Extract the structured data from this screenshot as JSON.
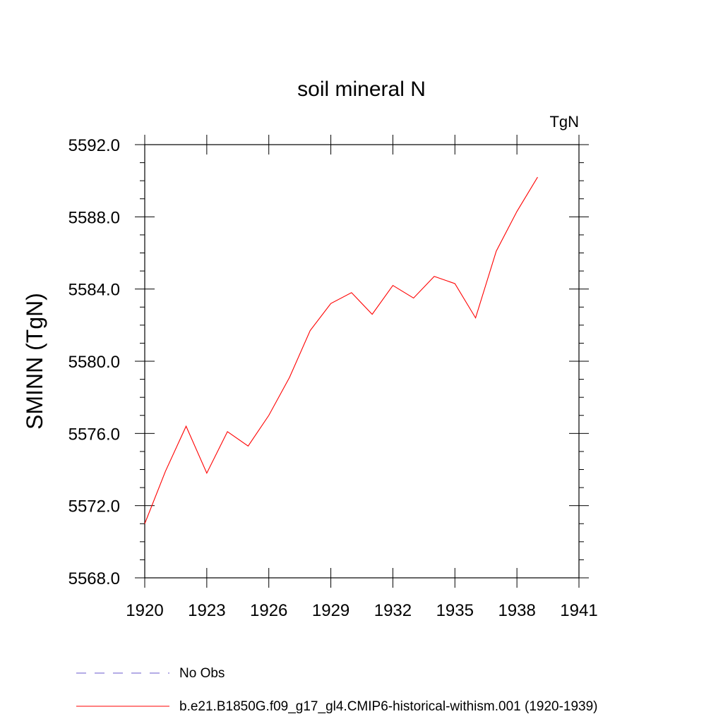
{
  "chart_data": {
    "type": "line",
    "title": "soil mineral N",
    "units_label": "TgN",
    "xlabel": "",
    "ylabel": "SMINN  (TgN)",
    "xlim": [
      1920,
      1941
    ],
    "ylim": [
      5568.0,
      5592.0
    ],
    "x_ticks": [
      "1920",
      "1923",
      "1926",
      "1929",
      "1932",
      "1935",
      "1938",
      "1941"
    ],
    "y_ticks": [
      "5568.0",
      "5572.0",
      "5576.0",
      "5580.0",
      "5584.0",
      "5588.0",
      "5592.0"
    ],
    "grid": false,
    "legend_position": "bottom",
    "series": [
      {
        "name": "No Obs",
        "color": "#6a5acd",
        "dash": "dashed",
        "x": [],
        "values": []
      },
      {
        "name": "b.e21.B1850G.f09_g17_gl4.CMIP6-historical-withism.001 (1920-1939)",
        "color": "#ff0000",
        "dash": "solid",
        "x": [
          1920,
          1921,
          1922,
          1923,
          1924,
          1925,
          1926,
          1927,
          1928,
          1929,
          1930,
          1931,
          1932,
          1933,
          1934,
          1935,
          1936,
          1937,
          1938,
          1939
        ],
        "values": [
          5571.0,
          5573.9,
          5576.4,
          5573.8,
          5576.1,
          5575.3,
          5577.0,
          5579.1,
          5581.7,
          5583.2,
          5583.8,
          5582.6,
          5584.2,
          5583.5,
          5584.7,
          5584.3,
          5582.4,
          5586.1,
          5588.3,
          5590.2
        ]
      }
    ]
  }
}
